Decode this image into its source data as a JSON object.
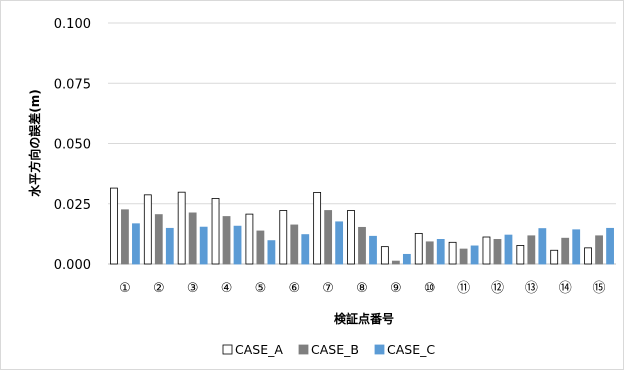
{
  "chart_data": {
    "type": "bar",
    "title": "",
    "xlabel": "検証点番号",
    "ylabel": "水平方向の誤差(m)",
    "ylim": [
      0,
      0.1
    ],
    "yticks": [
      "0.000",
      "0.025",
      "0.050",
      "0.075",
      "0.100"
    ],
    "ytick_values": [
      0,
      0.025,
      0.05,
      0.075,
      0.1
    ],
    "grid": true,
    "legend_position": "bottom",
    "categories": [
      "①",
      "②",
      "③",
      "④",
      "⑤",
      "⑥",
      "⑦",
      "⑧",
      "⑨",
      "⑩",
      "⑪",
      "⑫",
      "⑬",
      "⑭",
      "⑮"
    ],
    "series": [
      {
        "name": "CASE_A",
        "fill": "#ffffff",
        "stroke": "#000000",
        "values": [
          0.0315,
          0.0287,
          0.0298,
          0.0272,
          0.0207,
          0.0222,
          0.0297,
          0.0222,
          0.0072,
          0.0127,
          0.009,
          0.0112,
          0.0077,
          0.0057,
          0.0067
        ]
      },
      {
        "name": "CASE_B",
        "fill": "#7f7f7f",
        "stroke": "#7f7f7f",
        "values": [
          0.0225,
          0.0205,
          0.0212,
          0.0197,
          0.0137,
          0.0162,
          0.0222,
          0.0152,
          0.0012,
          0.0092,
          0.0062,
          0.0102,
          0.0117,
          0.0107,
          0.0117
        ]
      },
      {
        "name": "CASE_C",
        "fill": "#5b9bd5",
        "stroke": "#5b9bd5",
        "values": [
          0.0167,
          0.0148,
          0.0153,
          0.0157,
          0.0097,
          0.0122,
          0.0175,
          0.0115,
          0.004,
          0.0102,
          0.0075,
          0.012,
          0.0147,
          0.0142,
          0.0148
        ]
      }
    ]
  }
}
